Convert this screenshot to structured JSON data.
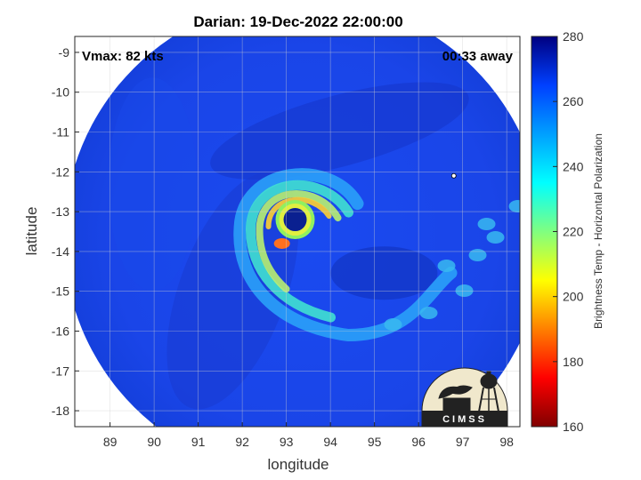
{
  "chart_data": {
    "type": "heatmap",
    "title": "Darian: 19-Dec-2022 22:00:00",
    "xlabel": "longitude",
    "ylabel": "latitude",
    "xlim": [
      88.2,
      98.3
    ],
    "ylim": [
      -18.4,
      -8.6
    ],
    "xticks": [
      89,
      90,
      91,
      92,
      93,
      94,
      95,
      96,
      97,
      98
    ],
    "yticks": [
      -9,
      -10,
      -11,
      -12,
      -13,
      -14,
      -15,
      -16,
      -17,
      -18
    ],
    "grid": true,
    "annotations": {
      "vmax": "Vmax: 82 kts",
      "time_away": "00:33 away"
    },
    "swath": {
      "center": [
        93.4,
        -13.65
      ],
      "radius_deg": 5.45
    },
    "storm": {
      "eye_center": [
        93.2,
        -13.2
      ],
      "warm_core": [
        92.9,
        -13.8
      ]
    },
    "colorbar": {
      "label": "Brightness Temp - Horizontal Polarization",
      "min": 160,
      "max": 280,
      "ticks": [
        160,
        180,
        200,
        220,
        240,
        260,
        280
      ],
      "colormap": "jet"
    },
    "logo": "CIMSS"
  }
}
